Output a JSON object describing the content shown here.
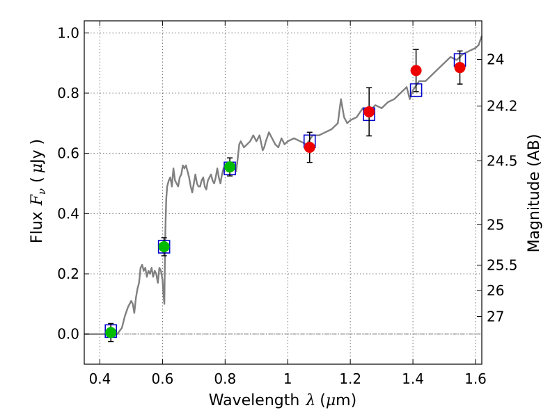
{
  "chart_data": {
    "type": "scatter",
    "title": "",
    "xlabel": {
      "prefix": "Wavelength",
      "symbol": "λ",
      "unit_open": "(",
      "unit_mu": "μ",
      "unit_rest": "m)"
    },
    "ylabel": {
      "prefix": "Flux",
      "symbol_F": "F",
      "symbol_sub": "ν",
      "unit_open": "(",
      "unit_mu": "μ",
      "unit_rest": "Jy )"
    },
    "y2label": "Magnitude (AB)",
    "xlim": [
      0.35,
      1.62
    ],
    "ylim": [
      -0.1,
      1.04
    ],
    "grid": true,
    "x_ticks": [
      {
        "value": 0.4,
        "label": "0.4"
      },
      {
        "value": 0.6,
        "label": "0.6"
      },
      {
        "value": 0.8,
        "label": "0.8"
      },
      {
        "value": 1.0,
        "label": "1"
      },
      {
        "value": 1.2,
        "label": "1.2"
      },
      {
        "value": 1.4,
        "label": "1.4"
      },
      {
        "value": 1.6,
        "label": "1.6"
      }
    ],
    "y_ticks": [
      {
        "value": 0.0,
        "label": "0.0"
      },
      {
        "value": 0.2,
        "label": "0.2"
      },
      {
        "value": 0.4,
        "label": "0.4"
      },
      {
        "value": 0.6,
        "label": "0.6"
      },
      {
        "value": 0.8,
        "label": "0.8"
      },
      {
        "value": 1.0,
        "label": "1.0"
      }
    ],
    "y2_ticks": [
      {
        "flux": 0.912,
        "label": "24"
      },
      {
        "flux": 0.757,
        "label": "24.2"
      },
      {
        "flux": 0.575,
        "label": "24.5"
      },
      {
        "flux": 0.363,
        "label": "25"
      },
      {
        "flux": 0.229,
        "label": "25.5"
      },
      {
        "flux": 0.145,
        "label": "26"
      },
      {
        "flux": 0.058,
        "label": "27"
      }
    ],
    "zero_line": 0.0,
    "colors": {
      "model": "#808080",
      "box": "#0000cc",
      "green": "#00bb00",
      "red": "#ee0000",
      "errorbar": "#000000",
      "grid": "#555555"
    },
    "series": [
      {
        "name": "model_spectrum",
        "type": "line",
        "x": [
          0.35,
          0.44,
          0.455,
          0.47,
          0.48,
          0.49,
          0.495,
          0.5,
          0.505,
          0.51,
          0.515,
          0.52,
          0.525,
          0.53,
          0.535,
          0.54,
          0.545,
          0.55,
          0.555,
          0.56,
          0.565,
          0.57,
          0.575,
          0.58,
          0.585,
          0.59,
          0.595,
          0.6,
          0.603,
          0.606,
          0.608,
          0.61,
          0.612,
          0.615,
          0.62,
          0.625,
          0.63,
          0.635,
          0.64,
          0.645,
          0.65,
          0.655,
          0.66,
          0.665,
          0.67,
          0.675,
          0.68,
          0.685,
          0.69,
          0.695,
          0.7,
          0.705,
          0.71,
          0.715,
          0.72,
          0.725,
          0.73,
          0.735,
          0.74,
          0.745,
          0.75,
          0.755,
          0.76,
          0.765,
          0.77,
          0.775,
          0.78,
          0.785,
          0.79,
          0.795,
          0.8,
          0.81,
          0.82,
          0.83,
          0.835,
          0.84,
          0.845,
          0.85,
          0.86,
          0.87,
          0.88,
          0.89,
          0.9,
          0.91,
          0.92,
          0.925,
          0.93,
          0.94,
          0.95,
          0.96,
          0.97,
          0.98,
          0.99,
          1.0,
          1.02,
          1.04,
          1.06,
          1.08,
          1.1,
          1.12,
          1.14,
          1.16,
          1.17,
          1.18,
          1.19,
          1.2,
          1.22,
          1.24,
          1.26,
          1.28,
          1.3,
          1.32,
          1.34,
          1.36,
          1.38,
          1.39,
          1.4,
          1.42,
          1.44,
          1.46,
          1.48,
          1.5,
          1.52,
          1.54,
          1.56,
          1.58,
          1.6,
          1.61,
          1.62
        ],
        "y": [
          0.0,
          0.0,
          0.0,
          0.02,
          0.06,
          0.09,
          0.1,
          0.11,
          0.1,
          0.07,
          0.12,
          0.15,
          0.17,
          0.22,
          0.23,
          0.21,
          0.22,
          0.19,
          0.21,
          0.2,
          0.22,
          0.19,
          0.21,
          0.2,
          0.17,
          0.22,
          0.21,
          0.18,
          0.13,
          0.1,
          0.28,
          0.38,
          0.45,
          0.49,
          0.51,
          0.52,
          0.49,
          0.55,
          0.51,
          0.5,
          0.49,
          0.52,
          0.53,
          0.56,
          0.55,
          0.56,
          0.54,
          0.52,
          0.49,
          0.47,
          0.5,
          0.53,
          0.5,
          0.49,
          0.49,
          0.51,
          0.52,
          0.49,
          0.48,
          0.51,
          0.52,
          0.53,
          0.51,
          0.5,
          0.52,
          0.55,
          0.52,
          0.5,
          0.53,
          0.55,
          0.56,
          0.57,
          0.55,
          0.56,
          0.54,
          0.58,
          0.63,
          0.64,
          0.62,
          0.63,
          0.64,
          0.66,
          0.64,
          0.66,
          0.61,
          0.62,
          0.64,
          0.67,
          0.65,
          0.63,
          0.62,
          0.65,
          0.63,
          0.64,
          0.65,
          0.64,
          0.63,
          0.66,
          0.66,
          0.67,
          0.68,
          0.7,
          0.78,
          0.72,
          0.7,
          0.71,
          0.72,
          0.75,
          0.74,
          0.76,
          0.75,
          0.77,
          0.78,
          0.8,
          0.82,
          0.78,
          0.81,
          0.84,
          0.84,
          0.86,
          0.88,
          0.9,
          0.92,
          0.91,
          0.93,
          0.94,
          0.95,
          0.96,
          0.99
        ]
      },
      {
        "name": "model_boxes",
        "type": "marker",
        "x": [
          0.435,
          0.605,
          0.815,
          1.07,
          1.26,
          1.41,
          1.55
        ],
        "y": [
          0.01,
          0.29,
          0.55,
          0.64,
          0.73,
          0.81,
          0.91
        ]
      },
      {
        "name": "green_points",
        "type": "errorbar",
        "x": [
          0.435,
          0.605,
          0.815
        ],
        "y": [
          0.005,
          0.29,
          0.555
        ],
        "yerr": [
          0.03,
          0.03,
          0.03
        ]
      },
      {
        "name": "red_points",
        "type": "errorbar",
        "x": [
          1.07,
          1.26,
          1.41,
          1.55
        ],
        "y": [
          0.62,
          0.738,
          0.875,
          0.885
        ],
        "yerr": [
          0.05,
          0.08,
          0.07,
          0.055
        ]
      }
    ]
  }
}
